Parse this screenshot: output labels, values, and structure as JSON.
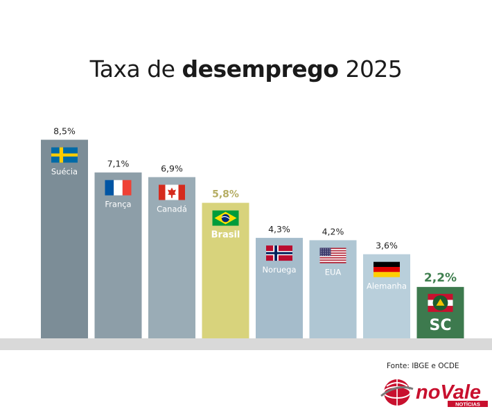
{
  "title": {
    "prefix": "Taxa de ",
    "bold": "desemprego",
    "suffix": " 2025"
  },
  "source": "Fonte: IBGE e OCDE",
  "logo": {
    "main": "noVale",
    "sub": "NOTÍCIAS"
  },
  "colors": {
    "base_bar": "#d9d9d9",
    "highlight_label": "#b5ad63",
    "sc_label": "#3f7f4f"
  },
  "chart_data": {
    "type": "bar",
    "title": "Taxa de desemprego 2025",
    "categories": [
      "Suécia",
      "França",
      "Canadá",
      "Brasil",
      "Noruega",
      "EUA",
      "Alemanha",
      "SC"
    ],
    "values": [
      8.5,
      7.1,
      6.9,
      5.8,
      4.3,
      4.2,
      3.6,
      2.2
    ],
    "value_labels": [
      "8,5%",
      "7,1%",
      "6,9%",
      "5,8%",
      "4,3%",
      "4,2%",
      "3,6%",
      "2,2%"
    ],
    "flags": [
      "sweden",
      "france",
      "canada",
      "brazil",
      "norway",
      "usa",
      "germany",
      "santa-catarina"
    ],
    "bar_colors": [
      "#7c8d97",
      "#8d9ea8",
      "#9aacb6",
      "#d8d37c",
      "#a5bccb",
      "#afc6d3",
      "#b9cfdb",
      "#3d7a4e"
    ],
    "grid": false,
    "legend": "none"
  }
}
